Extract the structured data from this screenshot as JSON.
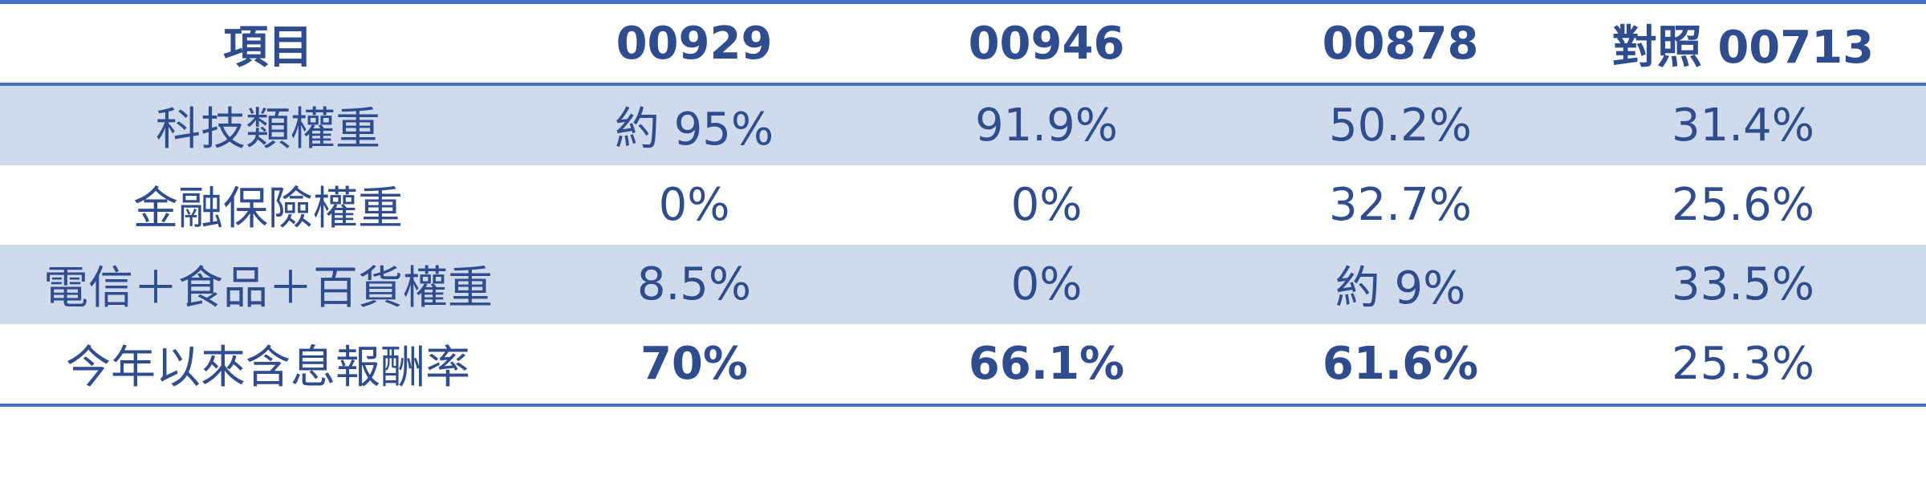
{
  "table": {
    "header": [
      "項目",
      "00929",
      "00946",
      "00878",
      "對照 00713"
    ],
    "rows": [
      [
        "科技類權重",
        "約 95%",
        "91.9%",
        "50.2%",
        "31.4%"
      ],
      [
        "金融保險權重",
        "0%",
        "0%",
        "32.7%",
        "25.6%"
      ],
      [
        "電信＋食品＋百貨權重",
        "8.5%",
        "0%",
        "約 9%",
        "33.5%"
      ],
      [
        "今年以來含息報酬率",
        "70%",
        "66.1%",
        "61.6%",
        "25.3%"
      ]
    ]
  }
}
